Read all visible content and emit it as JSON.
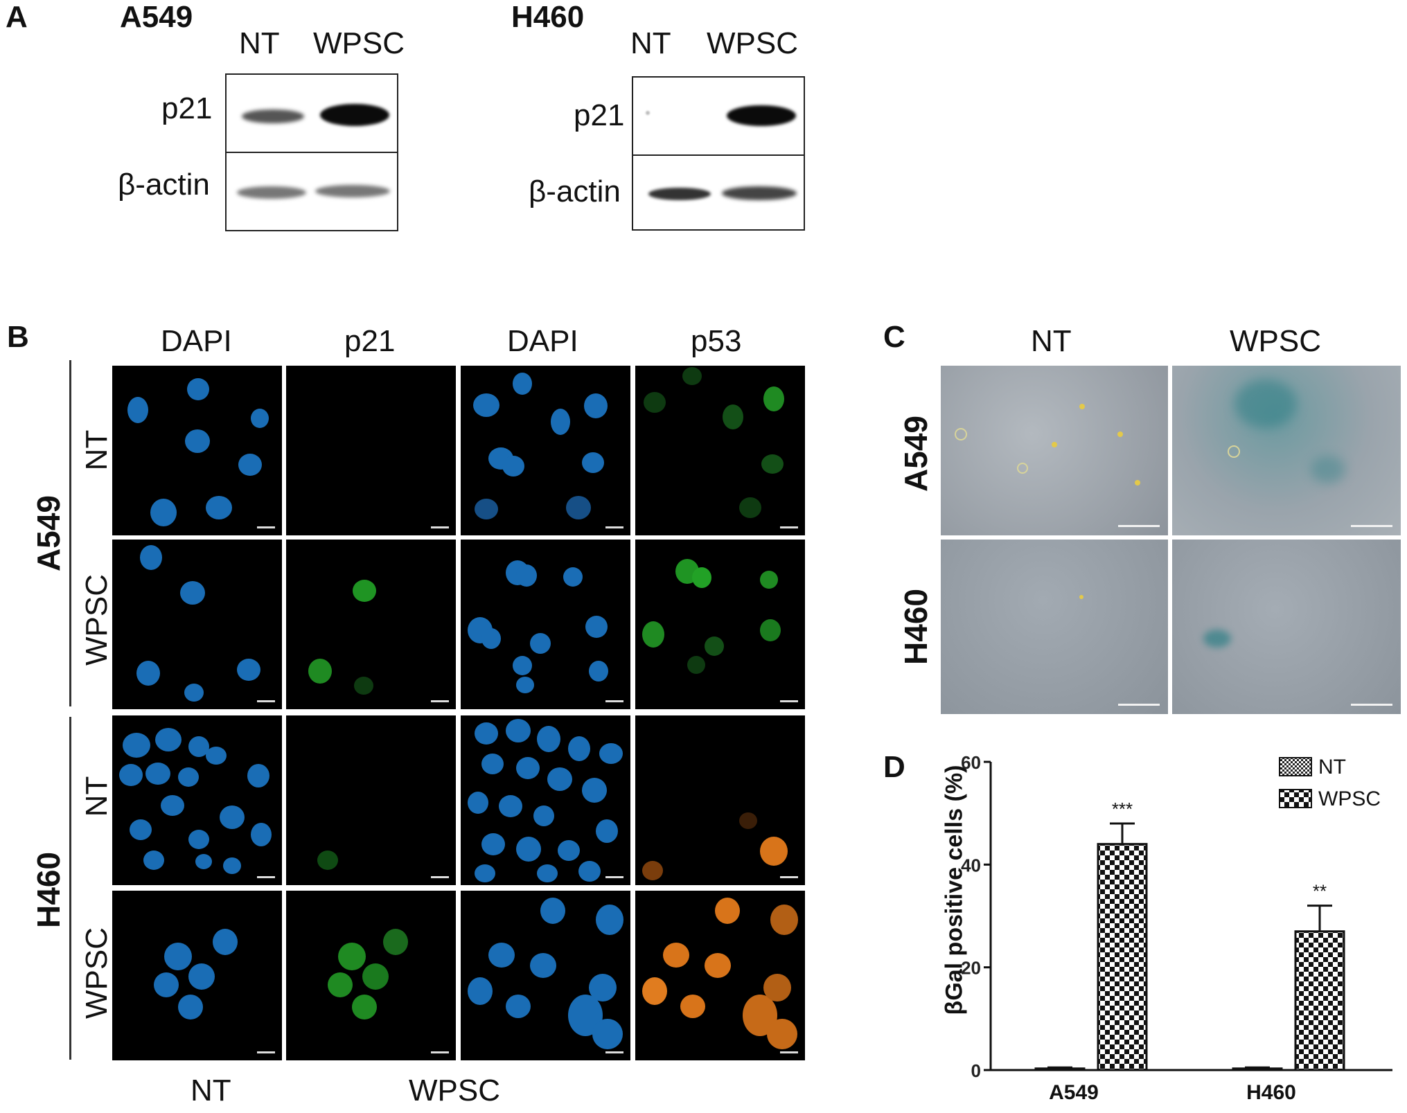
{
  "panelA": {
    "letter": "A",
    "cell_lines": [
      {
        "name": "A549",
        "conditions": [
          "NT",
          "WPSC"
        ],
        "rows": [
          "p21",
          "β-actin"
        ]
      },
      {
        "name": "H460",
        "conditions": [
          "NT",
          "WPSC"
        ],
        "rows": [
          "p21",
          "β-actin"
        ]
      }
    ]
  },
  "panelB": {
    "letter": "B",
    "columns": [
      "DAPI",
      "p21",
      "DAPI",
      "p53"
    ],
    "groups": [
      {
        "cell_line": "A549",
        "rows": [
          "NT",
          "WPSC"
        ]
      },
      {
        "cell_line": "H460",
        "rows": [
          "NT",
          "WPSC"
        ]
      }
    ],
    "bottom_labels": [
      "NT",
      "WPSC"
    ]
  },
  "panelC": {
    "letter": "C",
    "columns": [
      "NT",
      "WPSC"
    ],
    "rows": [
      "A549",
      "H460"
    ]
  },
  "colors": {
    "dapi": "#1f78c8",
    "green": "#1f8a22",
    "orange": "#d8741a",
    "bright_bg": "#9ea6ae",
    "senescent": "#2f7f86"
  },
  "chart_data": {
    "type": "bar",
    "letter": "D",
    "categories": [
      "A549",
      "H460"
    ],
    "series": [
      {
        "name": "NT",
        "values": [
          0.3,
          0.3
        ],
        "errors": [
          0.2,
          0.2
        ]
      },
      {
        "name": "WPSC",
        "values": [
          44,
          27
        ],
        "errors": [
          4,
          5
        ]
      }
    ],
    "annotations": [
      "***",
      "**"
    ],
    "ylabel": "βGal positive cells (%)",
    "ylim": [
      0,
      60
    ],
    "yticks": [
      "0",
      "20",
      "40",
      "60"
    ],
    "legend": "top-right",
    "grid": false
  }
}
